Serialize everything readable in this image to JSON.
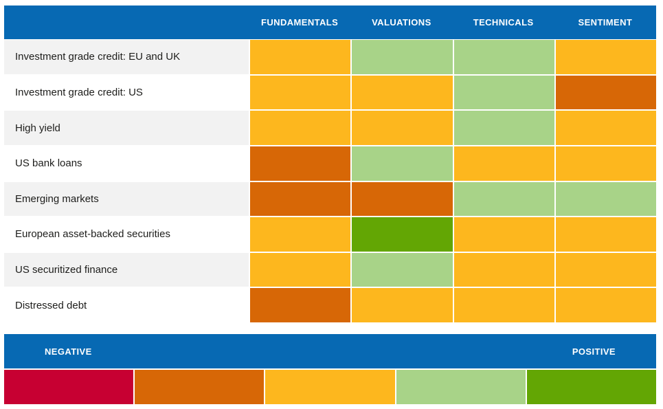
{
  "palette": {
    "blue": "#0769b3",
    "strong_negative": "#c70032",
    "negative": "#d76706",
    "neutral": "#fdb71e",
    "positive": "#a8d388",
    "strong_positive": "#63a604",
    "row_alt_bg": "#f2f2f2",
    "label_text": "#1d1d1b"
  },
  "header": {
    "columns": [
      "FUNDAMENTALS",
      "VALUATIONS",
      "TECHNICALS",
      "SENTIMENT"
    ]
  },
  "rows": [
    {
      "label": "Investment grade credit: EU and UK",
      "ratings": [
        "neutral",
        "positive",
        "positive",
        "neutral"
      ]
    },
    {
      "label": "Investment grade credit: US",
      "ratings": [
        "neutral",
        "neutral",
        "positive",
        "negative"
      ]
    },
    {
      "label": "High yield",
      "ratings": [
        "neutral",
        "neutral",
        "positive",
        "neutral"
      ]
    },
    {
      "label": "US bank loans",
      "ratings": [
        "negative",
        "positive",
        "neutral",
        "neutral"
      ]
    },
    {
      "label": "Emerging markets",
      "ratings": [
        "negative",
        "negative",
        "positive",
        "positive"
      ]
    },
    {
      "label": "European asset-backed securities",
      "ratings": [
        "neutral",
        "strong_positive",
        "neutral",
        "neutral"
      ]
    },
    {
      "label": "US securitized finance",
      "ratings": [
        "neutral",
        "positive",
        "neutral",
        "neutral"
      ]
    },
    {
      "label": "Distressed debt",
      "ratings": [
        "negative",
        "neutral",
        "neutral",
        "neutral"
      ]
    }
  ],
  "legend": {
    "negative_label": "NEGATIVE",
    "positive_label": "POSITIVE",
    "scale": [
      "strong_negative",
      "negative",
      "neutral",
      "positive",
      "strong_positive"
    ]
  },
  "chart_data": {
    "type": "heatmap",
    "title": "",
    "columns": [
      "FUNDAMENTALS",
      "VALUATIONS",
      "TECHNICALS",
      "SENTIMENT"
    ],
    "rows": [
      "Investment grade credit: EU and UK",
      "Investment grade credit: US",
      "High yield",
      "US bank loans",
      "Emerging markets",
      "European asset-backed securities",
      "US securitized finance",
      "Distressed debt"
    ],
    "values": [
      [
        3,
        4,
        4,
        3
      ],
      [
        3,
        3,
        4,
        2
      ],
      [
        3,
        3,
        4,
        3
      ],
      [
        2,
        4,
        3,
        3
      ],
      [
        2,
        2,
        4,
        4
      ],
      [
        3,
        5,
        3,
        3
      ],
      [
        3,
        4,
        3,
        3
      ],
      [
        2,
        3,
        3,
        3
      ]
    ],
    "value_scale": {
      "1": "strong negative (#c70032)",
      "2": "negative (#d76706)",
      "3": "neutral (#fdb71e)",
      "4": "positive (#a8d388)",
      "5": "strong positive (#63a604)"
    },
    "legend": {
      "left_label": "NEGATIVE",
      "right_label": "POSITIVE",
      "position": "bottom"
    }
  }
}
